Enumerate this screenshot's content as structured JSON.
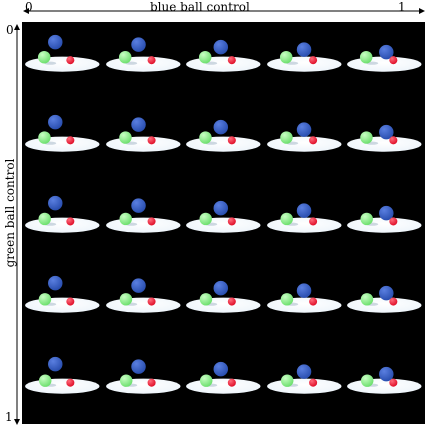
{
  "axes": {
    "x": {
      "title": "blue ball control",
      "start": "0",
      "end": "1"
    },
    "y": {
      "title": "green ball control",
      "start": "0",
      "end": "1"
    }
  },
  "grid": {
    "rows": 5,
    "cols": 5
  },
  "colors": {
    "background": "#000000",
    "plate": "#eef5fb",
    "blue_ball": "#2a4fb0",
    "green_ball": "#6fe070",
    "red_ball": "#e0102a"
  }
}
